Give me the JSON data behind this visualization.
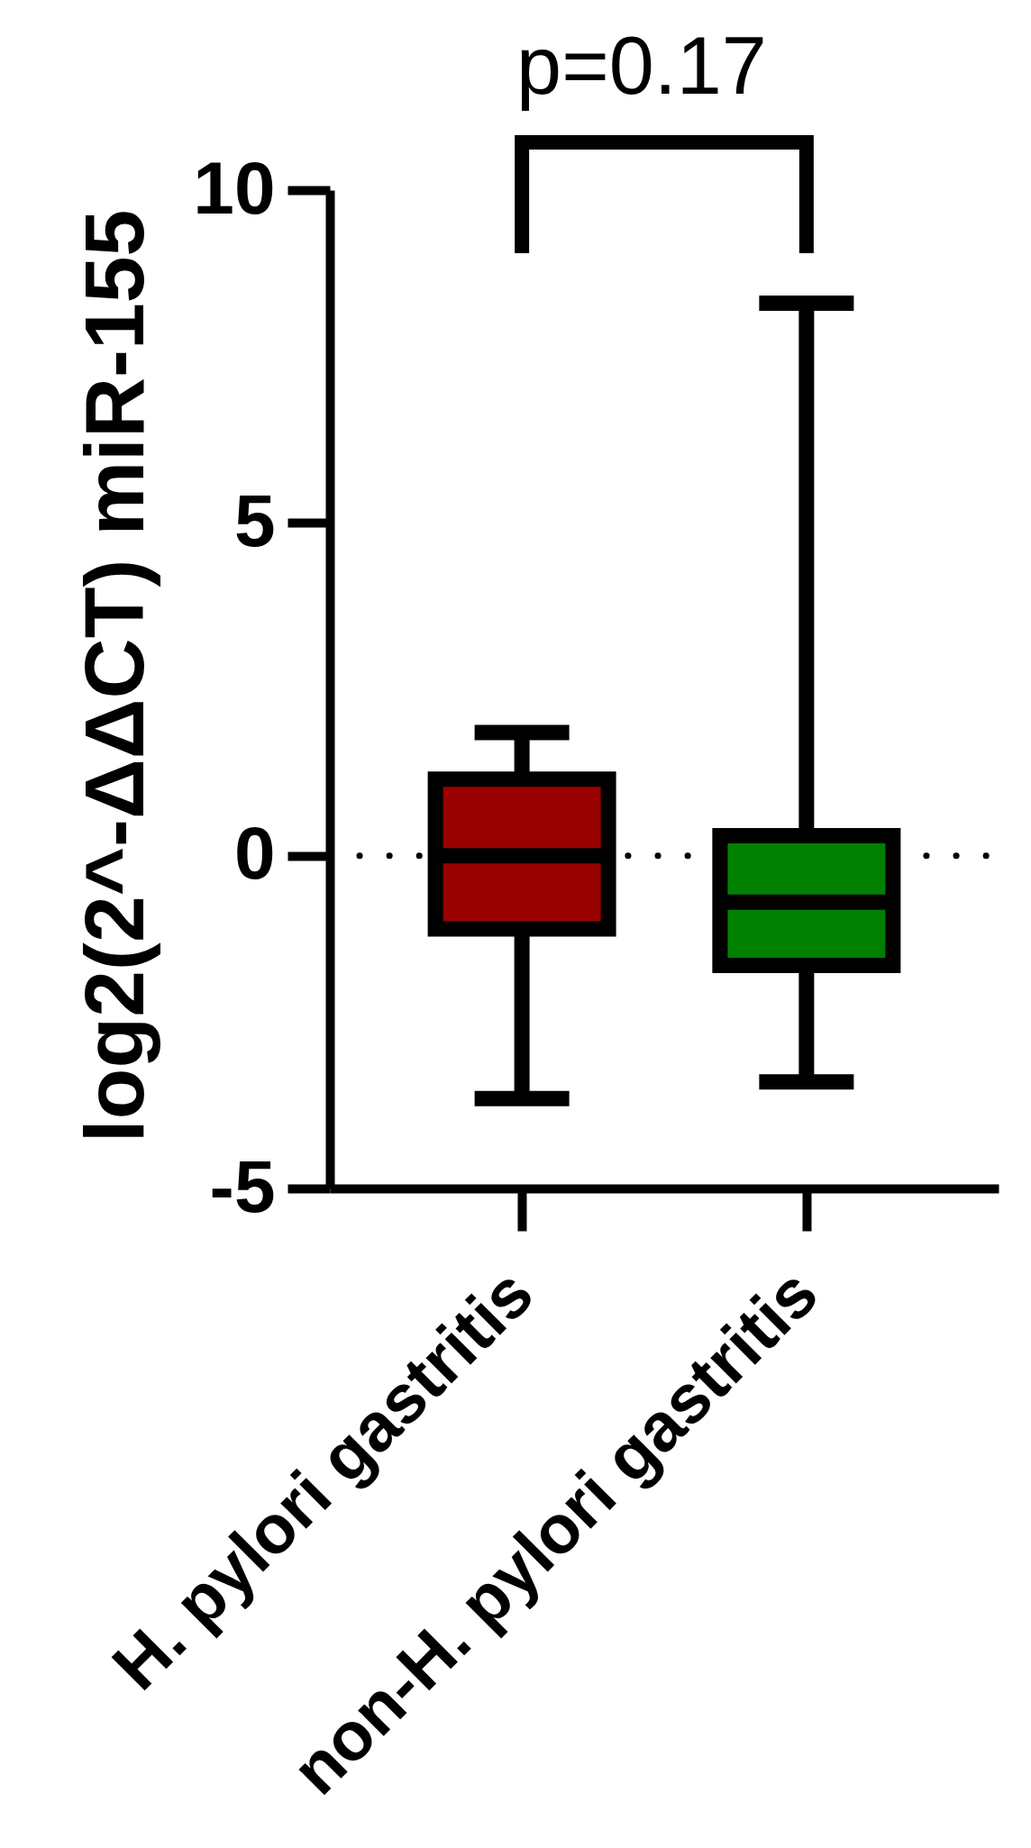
{
  "chart_data": {
    "type": "box",
    "ylabel": "log2(2^-ΔΔCT) miR-155",
    "annotations": [
      "p=0.17"
    ],
    "categories": [
      "H. pylori gastritis",
      "non-H. pylori gastritis"
    ],
    "boxes": [
      {
        "low": -3.65,
        "q1": -1.1,
        "median": 0,
        "q3": 1.15,
        "high": 1.85
      },
      {
        "low": -3.4,
        "q1": -1.65,
        "median": -0.7,
        "q3": 0.3,
        "high": 8.3
      }
    ],
    "colors": [
      "#990000",
      "#008000"
    ],
    "ylim": [
      -5,
      10
    ],
    "yticks": [
      -5,
      0,
      5,
      10
    ],
    "ref_lines": [
      {
        "axis": "y",
        "value": 0,
        "line_style": "dotted",
        "color": "#000000"
      }
    ]
  }
}
